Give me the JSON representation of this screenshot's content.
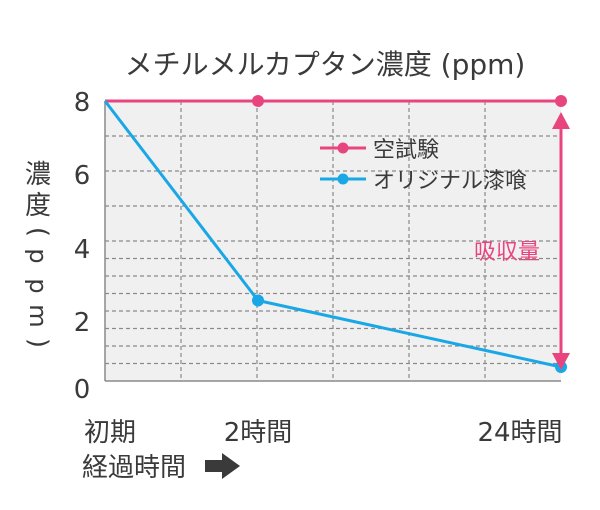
{
  "chart_data": {
    "type": "line",
    "title": "メチルメルカプタン濃度 (ppm)",
    "ylabel": [
      "濃",
      "度",
      "(",
      "p",
      "p",
      "m",
      ")"
    ],
    "xlabel": "経過時間",
    "x_tick_labels": [
      "初期",
      "2時間",
      "24時間"
    ],
    "y_tick_labels": [
      "8",
      "6",
      "4",
      "2",
      "0"
    ],
    "ylim": [
      0,
      8
    ],
    "grid": true,
    "legend_position": "top-right",
    "series": [
      {
        "name": "空試験",
        "color": "#e8457f",
        "values": [
          8,
          8,
          8
        ]
      },
      {
        "name": "オリジナル漆喰",
        "color": "#1aa7e6",
        "values": [
          8,
          2.3,
          0.4
        ]
      }
    ],
    "annotation": {
      "text": "吸収量",
      "color": "#e8457f"
    }
  },
  "colors": {
    "plot_background": "#f0f0f0",
    "grid": "#8a8a8a",
    "axis": "#8a8a8a",
    "text": "#3a3a3a",
    "arrow_icon": "#3a3a3a"
  }
}
